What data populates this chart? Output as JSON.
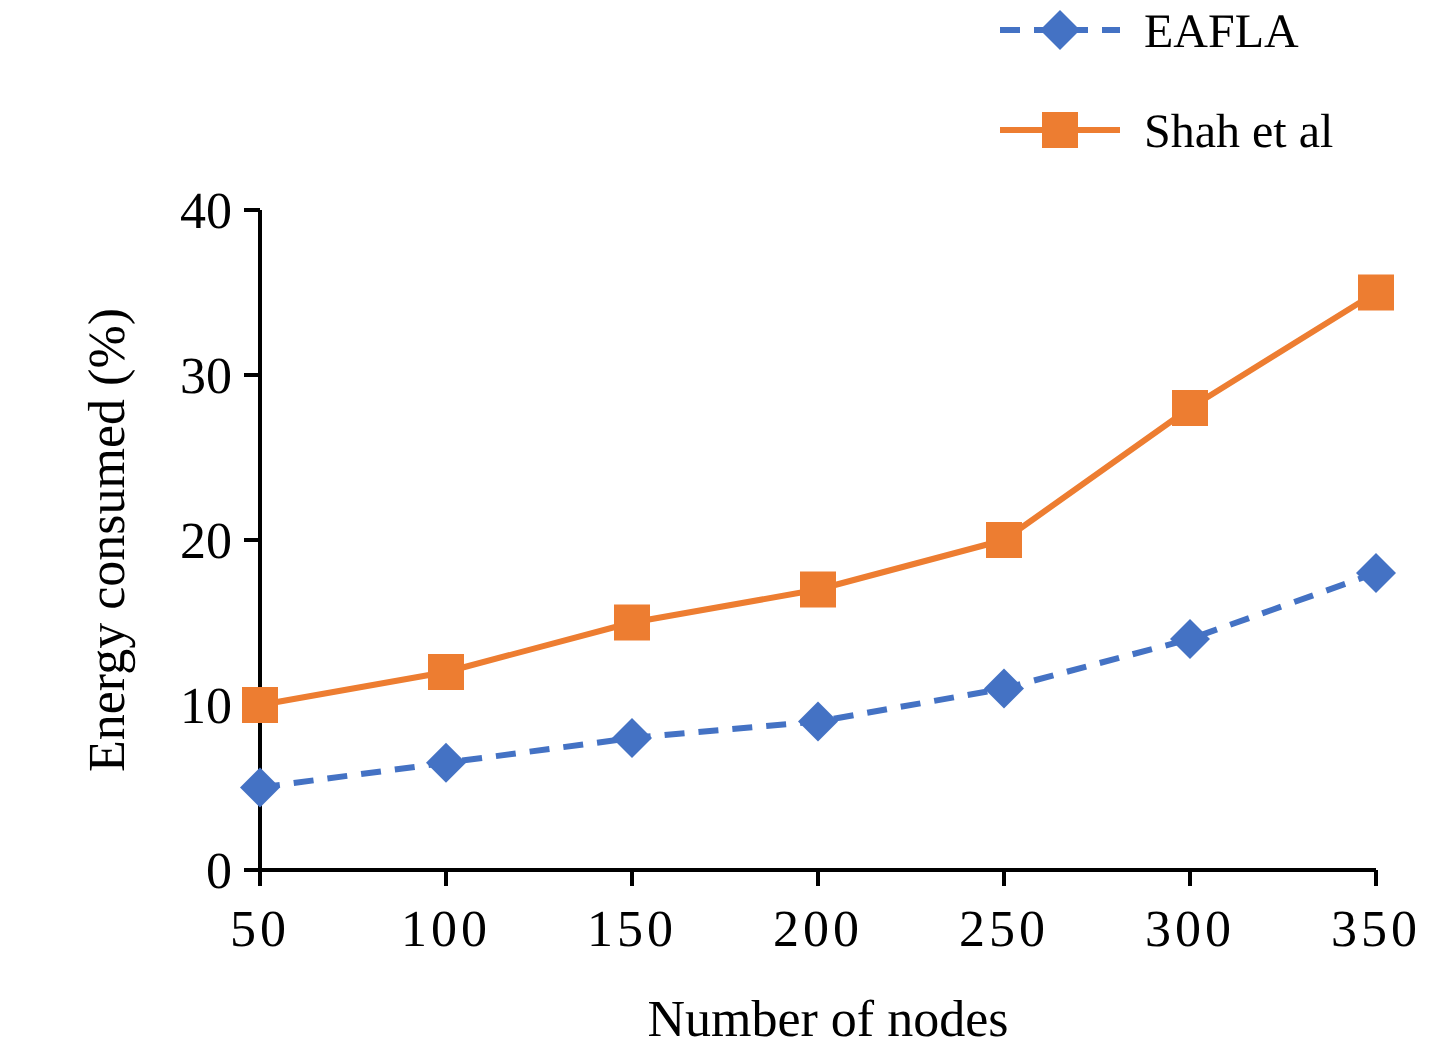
{
  "chart_data": {
    "type": "line",
    "xlabel": "Number of nodes",
    "ylabel": "Energy consumed (%)",
    "x": [
      50,
      100,
      150,
      200,
      250,
      300,
      350
    ],
    "xlim": [
      50,
      350
    ],
    "xticks": [
      50,
      100,
      150,
      200,
      250,
      300,
      350
    ],
    "ylim": [
      0,
      40
    ],
    "yticks": [
      0,
      10,
      20,
      30,
      40
    ],
    "grid": false,
    "legend": "top right",
    "series": [
      {
        "name": "EAFLA",
        "color": "#4472c4",
        "marker": "diamond",
        "line_style": "dashed",
        "values": [
          5,
          6.5,
          8,
          9,
          11,
          14,
          18
        ]
      },
      {
        "name": "Shah et al",
        "color": "#ed7d31",
        "marker": "square",
        "line_style": "solid",
        "values": [
          10,
          12,
          15,
          17,
          20,
          28,
          35
        ]
      }
    ]
  }
}
